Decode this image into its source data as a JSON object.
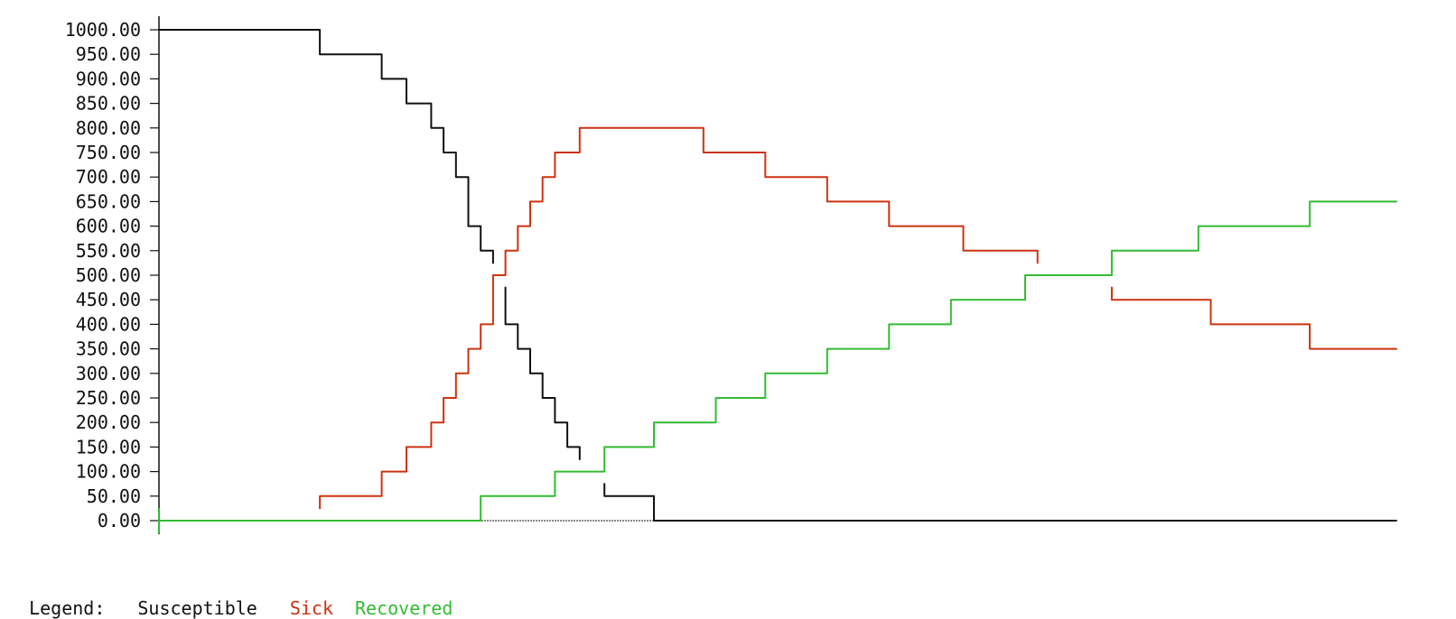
{
  "chart_data": {
    "type": "line",
    "ylim": [
      0,
      1000
    ],
    "y_ticks": [
      "0.00",
      "50.00",
      "100.00",
      "150.00",
      "200.00",
      "250.00",
      "300.00",
      "350.00",
      "400.00",
      "450.00",
      "500.00",
      "550.00",
      "600.00",
      "650.00",
      "700.00",
      "750.00",
      "800.00",
      "850.00",
      "900.00",
      "950.00",
      "1000.00"
    ],
    "legend": {
      "prefix": "Legend:",
      "entries": [
        "Susceptible",
        "Sick",
        "Recovered"
      ]
    },
    "series": [
      {
        "name": "Susceptible",
        "color": "#111111",
        "segments": [
          [
            [
              0,
              1000
            ],
            [
              26,
              1000
            ],
            [
              26,
              950
            ],
            [
              36,
              950
            ],
            [
              36,
              900
            ],
            [
              40,
              900
            ],
            [
              40,
              850
            ],
            [
              44,
              850
            ],
            [
              44,
              800
            ],
            [
              46,
              800
            ],
            [
              46,
              750
            ],
            [
              48,
              750
            ],
            [
              48,
              700
            ],
            [
              50,
              700
            ],
            [
              50,
              600
            ],
            [
              52,
              600
            ],
            [
              52,
              550
            ],
            [
              54,
              550
            ],
            [
              54,
              525
            ]
          ],
          [
            [
              56,
              475
            ],
            [
              56,
              400
            ],
            [
              58,
              400
            ],
            [
              58,
              350
            ],
            [
              60,
              350
            ],
            [
              60,
              300
            ],
            [
              62,
              300
            ],
            [
              62,
              250
            ],
            [
              64,
              250
            ],
            [
              64,
              200
            ],
            [
              66,
              200
            ],
            [
              66,
              150
            ],
            [
              68,
              150
            ],
            [
              68,
              125
            ]
          ],
          [
            [
              72,
              75
            ],
            [
              72,
              50
            ],
            [
              80,
              50
            ],
            [
              80,
              0
            ],
            [
              200,
              0
            ]
          ]
        ]
      },
      {
        "name": "Sick",
        "color": "#cc3311",
        "segments": [
          [
            [
              26,
              25
            ],
            [
              26,
              50
            ],
            [
              36,
              50
            ],
            [
              36,
              100
            ],
            [
              40,
              100
            ],
            [
              40,
              150
            ],
            [
              44,
              150
            ],
            [
              44,
              200
            ],
            [
              46,
              200
            ],
            [
              46,
              250
            ],
            [
              48,
              250
            ],
            [
              48,
              300
            ],
            [
              50,
              300
            ],
            [
              50,
              350
            ],
            [
              52,
              350
            ],
            [
              52,
              400
            ],
            [
              54,
              400
            ],
            [
              54,
              500
            ],
            [
              56,
              500
            ],
            [
              56,
              550
            ],
            [
              58,
              550
            ],
            [
              58,
              600
            ],
            [
              60,
              600
            ],
            [
              60,
              650
            ],
            [
              62,
              650
            ],
            [
              62,
              700
            ],
            [
              64,
              700
            ],
            [
              64,
              750
            ],
            [
              68,
              750
            ],
            [
              68,
              800
            ],
            [
              88,
              800
            ],
            [
              88,
              750
            ],
            [
              98,
              750
            ],
            [
              98,
              700
            ],
            [
              108,
              700
            ],
            [
              108,
              650
            ],
            [
              118,
              650
            ],
            [
              118,
              600
            ],
            [
              130,
              600
            ],
            [
              130,
              550
            ],
            [
              142,
              550
            ],
            [
              142,
              525
            ]
          ],
          [
            [
              154,
              475
            ],
            [
              154,
              450
            ],
            [
              170,
              450
            ],
            [
              170,
              400
            ],
            [
              186,
              400
            ],
            [
              186,
              350
            ],
            [
              200,
              350
            ]
          ]
        ]
      },
      {
        "name": "Recovered",
        "color": "#33bb33",
        "segments": [
          [
            [
              0,
              0
            ],
            [
              52,
              0
            ],
            [
              52,
              50
            ],
            [
              64,
              50
            ],
            [
              64,
              100
            ],
            [
              72,
              100
            ],
            [
              72,
              150
            ],
            [
              80,
              150
            ],
            [
              80,
              200
            ],
            [
              90,
              200
            ],
            [
              90,
              250
            ],
            [
              98,
              250
            ],
            [
              98,
              300
            ],
            [
              108,
              300
            ],
            [
              108,
              350
            ],
            [
              118,
              350
            ],
            [
              118,
              400
            ],
            [
              128,
              400
            ],
            [
              128,
              450
            ],
            [
              140,
              450
            ],
            [
              140,
              500
            ],
            [
              154,
              500
            ],
            [
              154,
              550
            ],
            [
              168,
              550
            ],
            [
              168,
              600
            ],
            [
              186,
              600
            ],
            [
              186,
              650
            ],
            [
              200,
              650
            ]
          ]
        ]
      }
    ]
  }
}
